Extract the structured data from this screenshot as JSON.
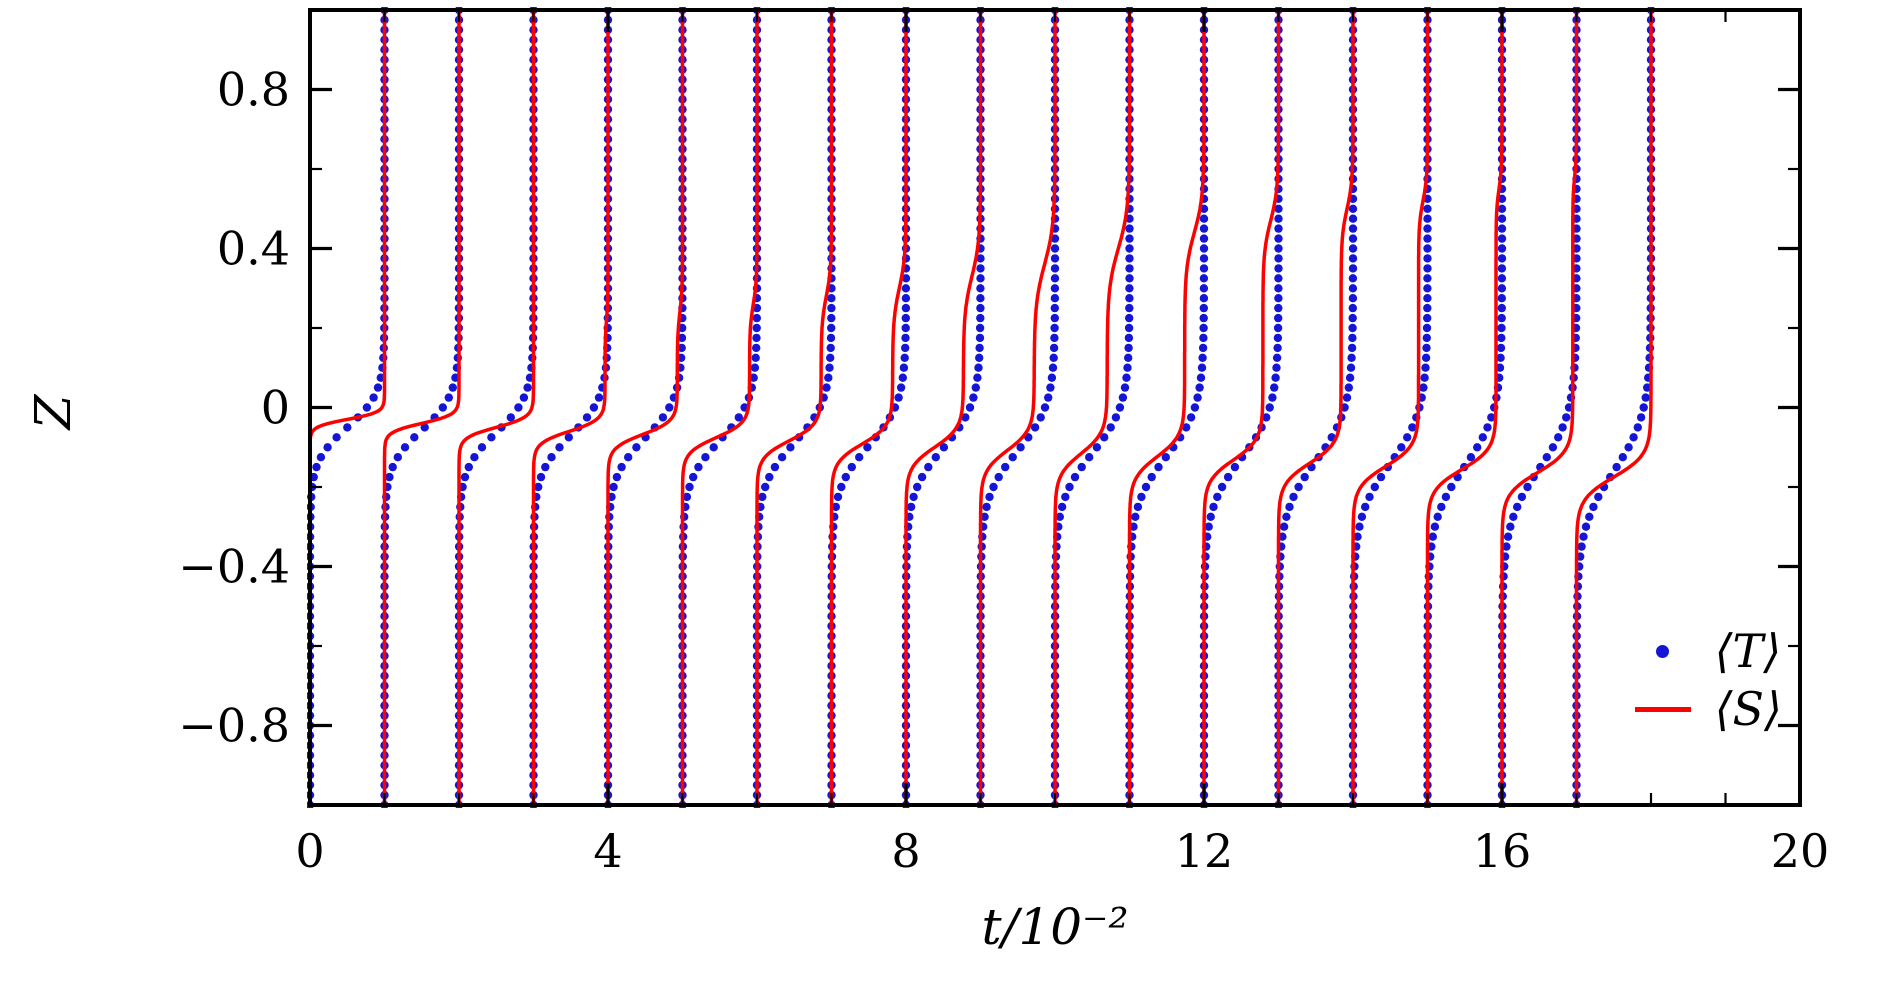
{
  "chart_data": {
    "type": "line",
    "title": "",
    "xlabel": "t/10⁻²",
    "ylabel": "Z",
    "xlim": [
      0,
      20
    ],
    "ylim": [
      -1,
      1
    ],
    "x_ticks": [
      0,
      4,
      8,
      12,
      16,
      20
    ],
    "y_ticks": [
      -0.8,
      -0.4,
      0,
      0.4,
      0.8
    ],
    "x_minor_step": 1,
    "y_minor_step": 0.2,
    "grid": false,
    "legend": {
      "position": "lower right",
      "items": [
        {
          "label": "⟨T⟩",
          "series": "T",
          "color": "#1515d6",
          "style": "dots"
        },
        {
          "label": "⟨S⟩",
          "series": "S",
          "color": "#ff0000",
          "style": "line"
        }
      ]
    },
    "series_model": "18 vertical profiles, one per time t=0..17 (units of 10^-2). Each profile is x(Z) = t + sum_i a_i*0.5*(1+tanh((Z-z0_i)/w_i)), rising from t at the bottom (Z=-1) to t+1 at the top (Z=+1) across the diffusive interface. T is drawn as blue dots (dZ=0.025), S as a solid red line.",
    "profiles": [
      {
        "t": 0,
        "T": {
          "z0": -0.05,
          "w": 0.085
        },
        "S": {
          "steps": [
            {
              "a": 1.0,
              "z0": -0.03,
              "w": 0.018
            }
          ]
        }
      },
      {
        "t": 1,
        "T": {
          "z0": -0.057,
          "w": 0.089
        },
        "S": {
          "steps": [
            {
              "a": 1.0,
              "z0": -0.04,
              "w": 0.022
            }
          ]
        }
      },
      {
        "t": 2,
        "T": {
          "z0": -0.063,
          "w": 0.092
        },
        "S": {
          "steps": [
            {
              "a": 1.0,
              "z0": -0.05,
              "w": 0.026
            }
          ]
        }
      },
      {
        "t": 3,
        "T": {
          "z0": -0.07,
          "w": 0.096
        },
        "S": {
          "steps": [
            {
              "a": 0.96,
              "z0": -0.06,
              "w": 0.03
            },
            {
              "a": 0.04,
              "z0": 0.22,
              "w": 0.05
            }
          ]
        }
      },
      {
        "t": 4,
        "T": {
          "z0": -0.076,
          "w": 0.099
        },
        "S": {
          "steps": [
            {
              "a": 0.93,
              "z0": -0.068,
              "w": 0.034
            },
            {
              "a": 0.07,
              "z0": 0.24,
              "w": 0.06
            }
          ]
        }
      },
      {
        "t": 5,
        "T": {
          "z0": -0.083,
          "w": 0.103
        },
        "S": {
          "steps": [
            {
              "a": 0.9,
              "z0": -0.076,
              "w": 0.038
            },
            {
              "a": 0.1,
              "z0": 0.26,
              "w": 0.06
            }
          ]
        }
      },
      {
        "t": 6,
        "T": {
          "z0": -0.089,
          "w": 0.106
        },
        "S": {
          "steps": [
            {
              "a": 0.86,
              "z0": -0.084,
              "w": 0.042
            },
            {
              "a": 0.14,
              "z0": 0.28,
              "w": 0.07
            }
          ]
        }
      },
      {
        "t": 7,
        "T": {
          "z0": -0.096,
          "w": 0.11
        },
        "S": {
          "steps": [
            {
              "a": 0.82,
              "z0": -0.092,
              "w": 0.046
            },
            {
              "a": 0.18,
              "z0": 0.3,
              "w": 0.08
            }
          ]
        }
      },
      {
        "t": 8,
        "T": {
          "z0": -0.102,
          "w": 0.113
        },
        "S": {
          "steps": [
            {
              "a": 0.77,
              "z0": -0.1,
              "w": 0.05
            },
            {
              "a": 0.23,
              "z0": 0.33,
              "w": 0.09
            }
          ]
        }
      },
      {
        "t": 9,
        "T": {
          "z0": -0.109,
          "w": 0.117
        },
        "S": {
          "steps": [
            {
              "a": 0.72,
              "z0": -0.108,
              "w": 0.052
            },
            {
              "a": 0.28,
              "z0": 0.36,
              "w": 0.1
            }
          ]
        }
      },
      {
        "t": 10,
        "T": {
          "z0": -0.115,
          "w": 0.12
        },
        "S": {
          "steps": [
            {
              "a": 0.7,
              "z0": -0.116,
              "w": 0.054
            },
            {
              "a": 0.3,
              "z0": 0.4,
              "w": 0.1
            }
          ]
        }
      },
      {
        "t": 11,
        "T": {
          "z0": -0.122,
          "w": 0.124
        },
        "S": {
          "steps": [
            {
              "a": 0.74,
              "z0": -0.124,
              "w": 0.054
            },
            {
              "a": 0.26,
              "z0": 0.44,
              "w": 0.09
            }
          ]
        }
      },
      {
        "t": 12,
        "T": {
          "z0": -0.128,
          "w": 0.127
        },
        "S": {
          "steps": [
            {
              "a": 0.79,
              "z0": -0.132,
              "w": 0.052
            },
            {
              "a": 0.21,
              "z0": 0.47,
              "w": 0.08
            }
          ]
        }
      },
      {
        "t": 13,
        "T": {
          "z0": -0.135,
          "w": 0.131
        },
        "S": {
          "steps": [
            {
              "a": 0.84,
              "z0": -0.14,
              "w": 0.052
            },
            {
              "a": 0.16,
              "z0": 0.5,
              "w": 0.07
            }
          ]
        }
      },
      {
        "t": 14,
        "T": {
          "z0": -0.141,
          "w": 0.134
        },
        "S": {
          "steps": [
            {
              "a": 0.88,
              "z0": -0.148,
              "w": 0.052
            },
            {
              "a": 0.12,
              "z0": 0.52,
              "w": 0.06
            }
          ]
        }
      },
      {
        "t": 15,
        "T": {
          "z0": -0.148,
          "w": 0.138
        },
        "S": {
          "steps": [
            {
              "a": 0.92,
              "z0": -0.156,
              "w": 0.052
            },
            {
              "a": 0.08,
              "z0": 0.55,
              "w": 0.055
            }
          ]
        }
      },
      {
        "t": 16,
        "T": {
          "z0": -0.154,
          "w": 0.141
        },
        "S": {
          "steps": [
            {
              "a": 0.95,
              "z0": -0.164,
              "w": 0.054
            },
            {
              "a": 0.05,
              "z0": 0.58,
              "w": 0.05
            }
          ]
        }
      },
      {
        "t": 17,
        "T": {
          "z0": -0.161,
          "w": 0.145
        },
        "S": {
          "steps": [
            {
              "a": 1.0,
              "z0": -0.175,
              "w": 0.056
            }
          ]
        }
      }
    ]
  }
}
